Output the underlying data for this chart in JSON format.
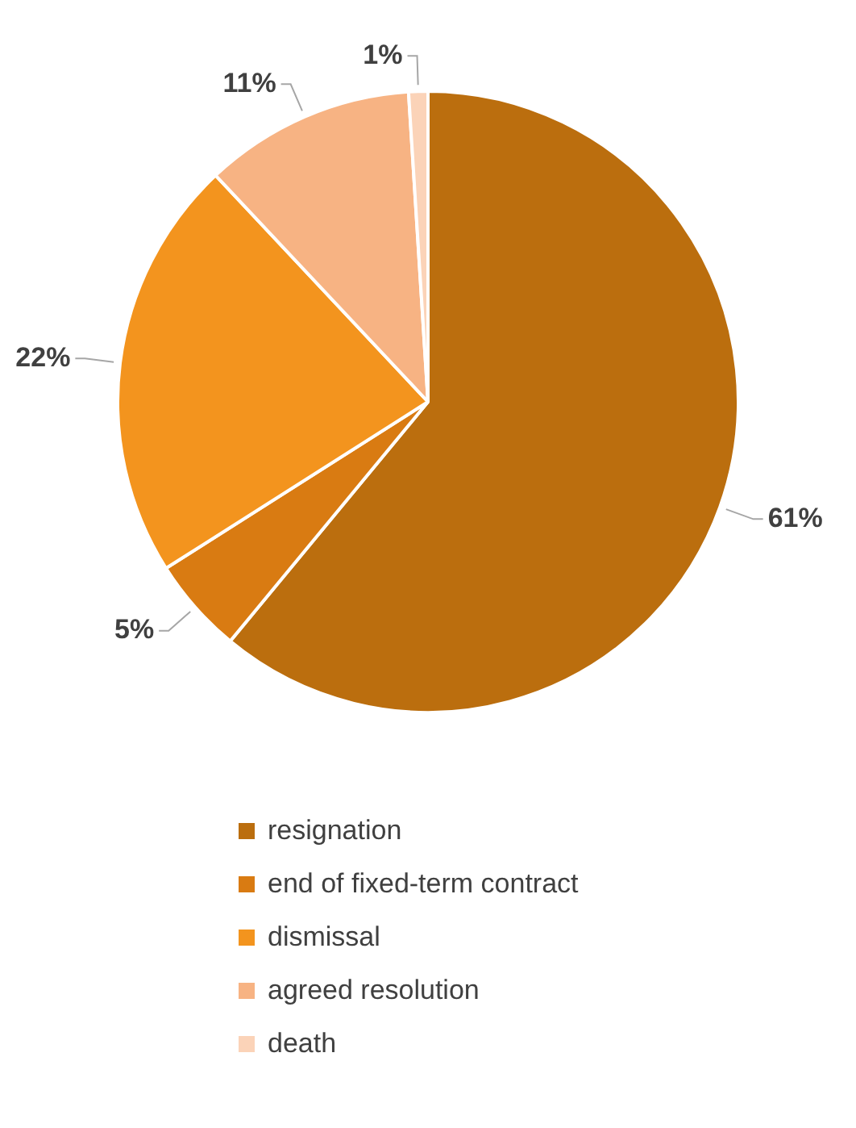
{
  "chart_data": {
    "type": "pie",
    "categories": [
      "resignation",
      "end of fixed-term contract",
      "dismissal",
      "agreed resolution",
      "death"
    ],
    "values": [
      61,
      5,
      22,
      11,
      1
    ],
    "colors": [
      "#bb6e0e",
      "#d97b12",
      "#f3941e",
      "#f7b383",
      "#fbd3b8"
    ],
    "value_labels": [
      "61%",
      "5%",
      "22%",
      "11%",
      "1%"
    ],
    "legend": "bottom"
  }
}
